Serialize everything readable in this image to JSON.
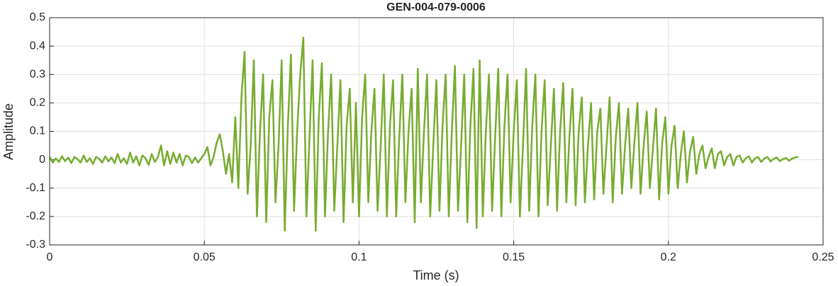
{
  "chart_data": {
    "type": "line",
    "title": "GEN-004-079-0006",
    "x_label": "Time (s)",
    "y_label": "Amplitude",
    "color": "#77ac30",
    "grid": true,
    "xlim": [
      0,
      0.25
    ],
    "xticks": [
      0,
      0.05,
      0.1,
      0.15,
      0.2,
      0.25
    ],
    "ylim": [
      -0.3,
      0.5
    ],
    "yticks": [
      -0.3,
      -0.2,
      -0.1,
      0,
      0.1,
      0.2,
      0.3,
      0.4,
      0.5
    ],
    "x": [
      0,
      0.001,
      0.002,
      0.003,
      0.004,
      0.005,
      0.006,
      0.007,
      0.008,
      0.009,
      0.01,
      0.011,
      0.012,
      0.013,
      0.014,
      0.015,
      0.016,
      0.017,
      0.018,
      0.019,
      0.02,
      0.021,
      0.022,
      0.023,
      0.024,
      0.025,
      0.026,
      0.027,
      0.028,
      0.029,
      0.03,
      0.031,
      0.032,
      0.033,
      0.034,
      0.035,
      0.036,
      0.037,
      0.038,
      0.039,
      0.04,
      0.041,
      0.042,
      0.043,
      0.044,
      0.045,
      0.046,
      0.047,
      0.048,
      0.049,
      0.05,
      0.051,
      0.052,
      0.053,
      0.054,
      0.055,
      0.056,
      0.057,
      0.058,
      0.059,
      0.06,
      0.061,
      0.062,
      0.063,
      0.064,
      0.065,
      0.066,
      0.067,
      0.068,
      0.069,
      0.07,
      0.071,
      0.072,
      0.073,
      0.074,
      0.075,
      0.076,
      0.077,
      0.078,
      0.079,
      0.08,
      0.081,
      0.082,
      0.083,
      0.084,
      0.085,
      0.086,
      0.087,
      0.088,
      0.089,
      0.09,
      0.091,
      0.092,
      0.093,
      0.094,
      0.095,
      0.096,
      0.097,
      0.098,
      0.099,
      0.1,
      0.101,
      0.102,
      0.103,
      0.104,
      0.105,
      0.106,
      0.107,
      0.108,
      0.109,
      0.11,
      0.111,
      0.112,
      0.113,
      0.114,
      0.115,
      0.116,
      0.117,
      0.118,
      0.119,
      0.12,
      0.121,
      0.122,
      0.123,
      0.124,
      0.125,
      0.126,
      0.127,
      0.128,
      0.129,
      0.13,
      0.131,
      0.132,
      0.133,
      0.134,
      0.135,
      0.136,
      0.137,
      0.138,
      0.139,
      0.14,
      0.141,
      0.142,
      0.143,
      0.144,
      0.145,
      0.146,
      0.147,
      0.148,
      0.149,
      0.15,
      0.151,
      0.152,
      0.153,
      0.154,
      0.155,
      0.156,
      0.157,
      0.158,
      0.159,
      0.16,
      0.161,
      0.162,
      0.163,
      0.164,
      0.165,
      0.166,
      0.167,
      0.168,
      0.169,
      0.17,
      0.171,
      0.172,
      0.173,
      0.174,
      0.175,
      0.176,
      0.177,
      0.178,
      0.179,
      0.18,
      0.181,
      0.182,
      0.183,
      0.184,
      0.185,
      0.186,
      0.187,
      0.188,
      0.189,
      0.19,
      0.191,
      0.192,
      0.193,
      0.194,
      0.195,
      0.196,
      0.197,
      0.198,
      0.199,
      0.2,
      0.201,
      0.202,
      0.203,
      0.204,
      0.205,
      0.206,
      0.207,
      0.208,
      0.209,
      0.21,
      0.211,
      0.212,
      0.213,
      0.214,
      0.215,
      0.216,
      0.217,
      0.218,
      0.219,
      0.22,
      0.221,
      0.222,
      0.223,
      0.224,
      0.225,
      0.226,
      0.227,
      0.228,
      0.229,
      0.23,
      0.231,
      0.232,
      0.233,
      0.234,
      0.235,
      0.236,
      0.237,
      0.238,
      0.239,
      0.24,
      0.241,
      0.242
    ],
    "values": [
      0.01,
      -0.01,
      0.005,
      -0.008,
      0.012,
      -0.005,
      0.008,
      -0.012,
      0.01,
      0.002,
      -0.01,
      0.015,
      -0.008,
      0.005,
      -0.015,
      0.01,
      0.003,
      -0.01,
      0.012,
      -0.006,
      0.008,
      -0.012,
      0.02,
      -0.01,
      0.005,
      -0.015,
      0.025,
      -0.01,
      0.012,
      -0.02,
      0.015,
      0.005,
      -0.018,
      0.02,
      -0.008,
      0.01,
      0.05,
      -0.02,
      0.03,
      -0.015,
      0.025,
      -0.01,
      0.02,
      -0.02,
      0.015,
      0.01,
      -0.012,
      0.008,
      -0.01,
      0.005,
      0.02,
      0.045,
      -0.02,
      0.01,
      0.06,
      0.09,
      0.03,
      -0.05,
      0.02,
      -0.08,
      0.15,
      -0.1,
      0.22,
      0.38,
      -0.12,
      0.05,
      0.35,
      -0.2,
      0.1,
      0.3,
      -0.22,
      0.15,
      0.28,
      -0.15,
      0.05,
      0.35,
      -0.25,
      0.12,
      0.37,
      -0.18,
      0.1,
      0.3,
      0.43,
      -0.2,
      0.08,
      0.35,
      -0.25,
      0.15,
      0.34,
      -0.2,
      0.1,
      0.3,
      -0.18,
      0.05,
      0.28,
      -0.22,
      0.12,
      0.25,
      -0.15,
      0.2,
      -0.2,
      0.15,
      0.3,
      -0.15,
      0.1,
      0.25,
      -0.18,
      0.05,
      0.3,
      -0.2,
      0.12,
      0.28,
      -0.2,
      0.08,
      0.3,
      -0.15,
      0.1,
      0.25,
      -0.22,
      0.32,
      -0.15,
      0.1,
      0.3,
      -0.2,
      0.05,
      0.28,
      -0.18,
      0.12,
      0.3,
      -0.2,
      0.1,
      0.33,
      -0.18,
      0.05,
      0.3,
      -0.22,
      0.12,
      0.32,
      -0.24,
      0.35,
      -0.2,
      0.1,
      0.3,
      -0.18,
      0.08,
      0.32,
      -0.2,
      0.12,
      0.3,
      -0.15,
      0.1,
      0.28,
      -0.2,
      0.05,
      0.32,
      -0.18,
      0.12,
      0.3,
      -0.2,
      0.1,
      0.28,
      -0.16,
      0.05,
      0.25,
      -0.18,
      0.1,
      0.27,
      -0.15,
      0.08,
      0.25,
      -0.16,
      0.1,
      0.22,
      -0.15,
      0.05,
      0.2,
      -0.14,
      0.1,
      0.18,
      -0.12,
      0.05,
      0.22,
      -0.15,
      0.08,
      0.2,
      -0.12,
      0.05,
      0.18,
      -0.1,
      0.06,
      0.2,
      -0.12,
      0.05,
      0.17,
      -0.1,
      0.04,
      0.18,
      -0.14,
      0.06,
      0.15,
      -0.12,
      0.05,
      0.12,
      -0.1,
      0.02,
      0.1,
      -0.08,
      0.03,
      0.08,
      -0.05,
      0.02,
      0.05,
      -0.03,
      0.01,
      0.04,
      -0.03,
      0.02,
      0.03,
      -0.02,
      0.01,
      0.02,
      -0.02,
      0.01,
      0.015,
      -0.01,
      0.005,
      0.012,
      -0.01,
      0.005,
      0.01,
      -0.008,
      0.004,
      0.01,
      -0.006,
      0.003,
      0.008,
      -0.005,
      0.002,
      0.006,
      -0.004,
      0.004,
      0.008,
      0.01
    ]
  }
}
